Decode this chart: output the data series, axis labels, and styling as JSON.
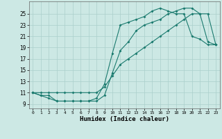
{
  "xlabel": "Humidex (Indice chaleur)",
  "x_ticks": [
    0,
    1,
    2,
    3,
    4,
    5,
    6,
    7,
    8,
    9,
    10,
    11,
    12,
    13,
    14,
    15,
    16,
    17,
    18,
    19,
    20,
    21,
    22,
    23
  ],
  "y_ticks": [
    9,
    11,
    13,
    15,
    17,
    19,
    21,
    23,
    25
  ],
  "xlim": [
    -0.5,
    23.5
  ],
  "ylim": [
    8.2,
    27.2
  ],
  "bg_color": "#cce8e4",
  "grid_color": "#aacfcb",
  "line_color": "#1a7a6e",
  "line1_x": [
    0,
    1,
    2,
    3,
    4,
    5,
    6,
    7,
    8,
    9,
    10,
    11,
    12,
    13,
    14,
    15,
    16,
    17,
    18,
    19,
    20,
    21,
    22,
    23
  ],
  "line1_y": [
    11,
    10.5,
    10.5,
    9.5,
    9.5,
    9.5,
    9.5,
    9.5,
    9.5,
    10.5,
    14.5,
    18.5,
    20,
    22,
    23,
    23.5,
    24,
    25,
    25.5,
    26,
    26,
    25,
    20,
    19.5
  ],
  "line2_x": [
    0,
    1,
    2,
    3,
    4,
    5,
    6,
    7,
    8,
    9,
    10,
    11,
    12,
    13,
    14,
    15,
    16,
    17,
    18,
    19,
    20,
    21,
    22,
    23
  ],
  "line2_y": [
    11,
    11,
    11,
    11,
    11,
    11,
    11,
    11,
    11,
    12,
    14,
    16,
    17,
    18,
    19,
    20,
    21,
    22,
    23,
    24,
    25,
    25,
    25,
    19.5
  ],
  "line3_x": [
    0,
    1,
    2,
    3,
    4,
    5,
    6,
    7,
    8,
    9,
    10,
    11,
    12,
    13,
    14,
    15,
    16,
    17,
    18,
    19,
    20,
    21,
    22,
    23
  ],
  "line3_y": [
    11,
    10.5,
    10,
    9.5,
    9.5,
    9.5,
    9.5,
    9.5,
    10,
    12.5,
    18,
    23,
    23.5,
    24,
    24.5,
    25.5,
    26,
    25.5,
    25,
    25,
    21,
    20.5,
    19.5,
    19.5
  ]
}
